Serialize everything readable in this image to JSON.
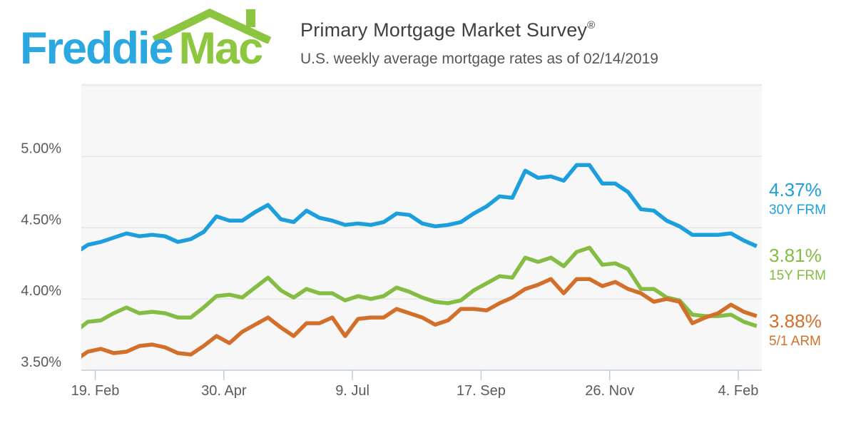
{
  "header": {
    "logo": {
      "word_freddie": "Freddie",
      "word_mac": "Mac",
      "freddie_color": "#2BA8E0",
      "mac_color": "#8DC63F",
      "roof_color": "#8CC540"
    },
    "title": "Primary Mortgage Market Survey",
    "title_mark": "®",
    "subtitle": "U.S. weekly average mortgage rates as of 02/14/2019",
    "as_of_date": "02/14/2019"
  },
  "chart_data": {
    "type": "line",
    "title": "Primary Mortgage Market Survey",
    "subtitle": "U.S. weekly average mortgage rates as of 02/14/2019",
    "x_unit": "week",
    "x_tick_labels": [
      "19. Feb",
      "30. Apr",
      "9. Jul",
      "17. Sep",
      "26. Nov",
      "4. Feb"
    ],
    "y_tick_labels": [
      "5.00%",
      "4.50%",
      "4.00%",
      "3.50%"
    ],
    "y_tick_values": [
      5.0,
      4.5,
      4.0,
      3.5
    ],
    "y_grid_values": [
      5.5,
      5.0,
      4.5,
      4.0
    ],
    "ylim": [
      3.5,
      5.5
    ],
    "grid": true,
    "legend_position": "right",
    "plot_bg": "#F7F7F7",
    "grid_color": "#E5E5E5",
    "axis_line_color": "#C0CEDB",
    "label_color": "#5A5B5E",
    "series": [
      {
        "name": "30Y FRM",
        "latest": "4.37%",
        "color": "#1C9FDC",
        "values": [
          4.32,
          4.38,
          4.4,
          4.43,
          4.46,
          4.44,
          4.45,
          4.44,
          4.4,
          4.42,
          4.47,
          4.58,
          4.55,
          4.55,
          4.61,
          4.66,
          4.56,
          4.54,
          4.62,
          4.57,
          4.55,
          4.52,
          4.53,
          4.52,
          4.54,
          4.6,
          4.59,
          4.53,
          4.51,
          4.52,
          4.54,
          4.6,
          4.65,
          4.72,
          4.71,
          4.9,
          4.85,
          4.86,
          4.83,
          4.94,
          4.94,
          4.81,
          4.81,
          4.75,
          4.63,
          4.62,
          4.55,
          4.51,
          4.45,
          4.45,
          4.45,
          4.46,
          4.41,
          4.37
        ]
      },
      {
        "name": "15Y FRM",
        "latest": "3.81%",
        "color": "#85BC43",
        "values": [
          3.77,
          3.84,
          3.85,
          3.9,
          3.94,
          3.9,
          3.91,
          3.9,
          3.87,
          3.87,
          3.94,
          4.02,
          4.03,
          4.01,
          4.08,
          4.15,
          4.06,
          4.01,
          4.07,
          4.04,
          4.04,
          3.99,
          4.02,
          4.0,
          4.02,
          4.08,
          4.05,
          4.01,
          3.98,
          3.97,
          3.99,
          4.06,
          4.11,
          4.16,
          4.15,
          4.29,
          4.26,
          4.29,
          4.23,
          4.33,
          4.36,
          4.24,
          4.25,
          4.21,
          4.07,
          4.07,
          4.01,
          3.99,
          3.89,
          3.88,
          3.88,
          3.89,
          3.84,
          3.81
        ]
      },
      {
        "name": "5/1 ARM",
        "latest": "3.88%",
        "color": "#D2702B",
        "values": [
          3.57,
          3.63,
          3.65,
          3.62,
          3.63,
          3.67,
          3.68,
          3.66,
          3.62,
          3.61,
          3.67,
          3.74,
          3.69,
          3.77,
          3.82,
          3.87,
          3.8,
          3.74,
          3.83,
          3.83,
          3.87,
          3.74,
          3.86,
          3.87,
          3.87,
          3.93,
          3.9,
          3.87,
          3.82,
          3.85,
          3.93,
          3.93,
          3.92,
          3.97,
          4.01,
          4.07,
          4.1,
          4.14,
          4.04,
          4.14,
          4.14,
          4.09,
          4.12,
          4.07,
          4.04,
          3.98,
          4.0,
          3.98,
          3.83,
          3.87,
          3.9,
          3.96,
          3.91,
          3.88
        ]
      }
    ]
  }
}
